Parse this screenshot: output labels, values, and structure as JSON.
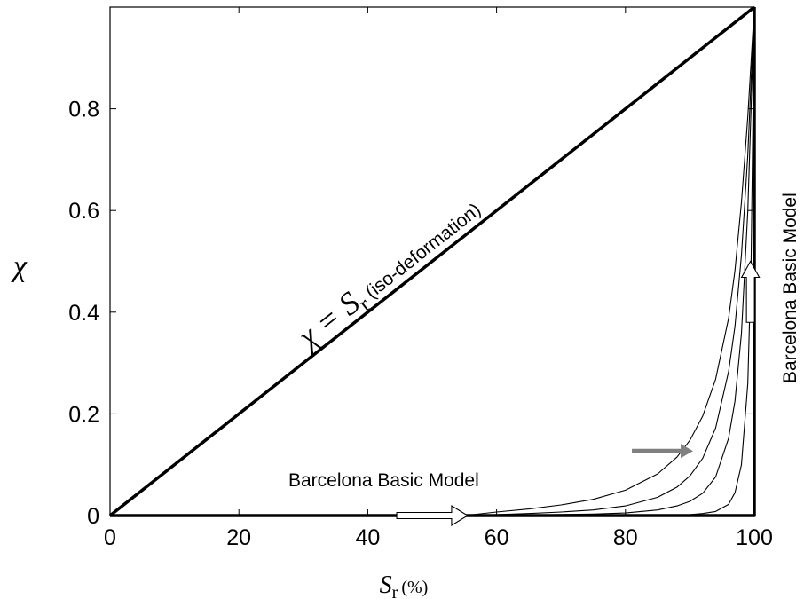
{
  "chart_data": {
    "type": "line",
    "title": "",
    "xlabel": "S_r (%)",
    "xlabel_main": "S",
    "xlabel_sub": "r",
    "xlabel_unit": "(%)",
    "ylabel": "χ",
    "xlim": [
      0,
      100
    ],
    "ylim": [
      0,
      1
    ],
    "x_ticks": [
      0,
      20,
      40,
      60,
      80,
      100
    ],
    "y_ticks": [
      0,
      0.2,
      0.4,
      0.6,
      0.8
    ],
    "x_tick_labels": [
      "0",
      "20",
      "40",
      "60",
      "80",
      "100"
    ],
    "y_tick_labels": [
      "0",
      "0.2",
      "0.4",
      "0.6",
      "0.8"
    ],
    "grid": false,
    "series": [
      {
        "style": "bold",
        "x": [
          0,
          100
        ],
        "y": [
          0,
          1
        ]
      },
      {
        "style": "bold",
        "x": [
          0,
          100,
          100
        ],
        "y": [
          0,
          0,
          1
        ]
      },
      {
        "style": "thin",
        "x": [
          55,
          60,
          65,
          70,
          75,
          80,
          85,
          88,
          90,
          92,
          94,
          96,
          97,
          98,
          99,
          100
        ],
        "y": [
          0,
          0.007,
          0.013,
          0.021,
          0.032,
          0.05,
          0.082,
          0.115,
          0.148,
          0.196,
          0.268,
          0.388,
          0.482,
          0.616,
          0.785,
          1.0
        ]
      },
      {
        "style": "thin",
        "x": [
          55,
          60,
          65,
          70,
          75,
          80,
          85,
          88,
          90,
          92,
          94,
          96,
          97,
          98,
          99,
          100
        ],
        "y": [
          0,
          0.002,
          0.004,
          0.007,
          0.011,
          0.019,
          0.036,
          0.056,
          0.078,
          0.113,
          0.172,
          0.283,
          0.372,
          0.512,
          0.71,
          1.0
        ]
      },
      {
        "style": "thin",
        "x": [
          55,
          65,
          75,
          80,
          85,
          88,
          90,
          92,
          94,
          96,
          97,
          98,
          99,
          100
        ],
        "y": [
          0,
          0.001,
          0.003,
          0.005,
          0.011,
          0.019,
          0.028,
          0.044,
          0.076,
          0.152,
          0.225,
          0.358,
          0.6,
          1.0
        ]
      },
      {
        "style": "thin",
        "x": [
          55,
          75,
          85,
          90,
          92,
          94,
          96,
          97,
          98,
          99,
          99.5,
          100
        ],
        "y": [
          0,
          0.0005,
          0.001,
          0.002,
          0.004,
          0.008,
          0.022,
          0.045,
          0.1,
          0.26,
          0.5,
          1.0
        ]
      }
    ],
    "annotations": {
      "diagonal_label_main": "χ = S",
      "diagonal_label_sub": "r",
      "diagonal_label_suffix": "(iso-deformation)",
      "bbm_horizontal": "Barcelona Basic Model",
      "bbm_vertical": "Barcelona Basic Model"
    },
    "arrows": [
      {
        "style": "hollow",
        "direction": "right",
        "from": [
          44.5,
          0
        ],
        "to": [
          55.5,
          0
        ]
      },
      {
        "style": "hollow",
        "direction": "up",
        "from": [
          99.4,
          0.38
        ],
        "to": [
          99.4,
          0.5
        ]
      },
      {
        "style": "gray",
        "direction": "right",
        "from": [
          81,
          0.127
        ],
        "to": [
          90.5,
          0.127
        ]
      }
    ],
    "colors": {
      "axis": "#000000",
      "gray_arrow": "#808080"
    }
  }
}
